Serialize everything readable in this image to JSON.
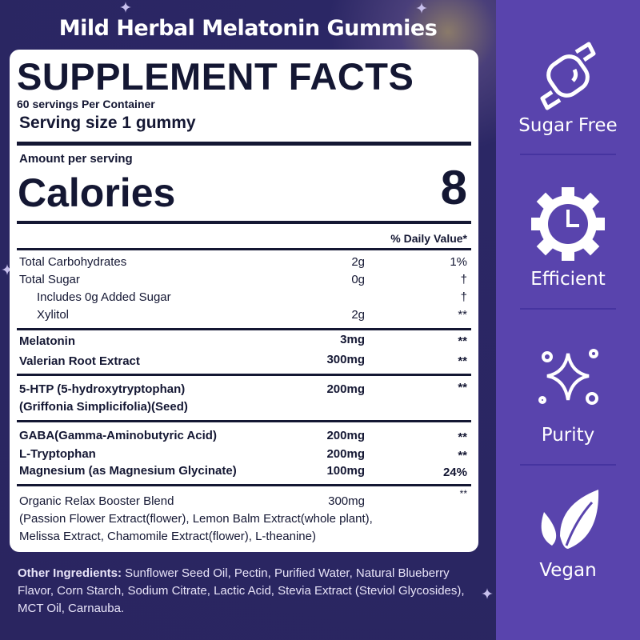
{
  "title": "Mild Herbal Melatonin Gummies",
  "label": {
    "heading": "SUPPLEMENT FACTS",
    "servings": "60 servings Per Container",
    "serving_size": "Serving size  1 gummy",
    "amount_per_serving": "Amount per serving",
    "calories_label": "Calories",
    "calories_value": "8",
    "dv_header": "% Daily Value*",
    "rows": [
      {
        "name": "Total Carbohydrates",
        "amount": "2g",
        "dv": "1%"
      },
      {
        "name": "Total Sugar",
        "amount": "0g",
        "dv": "†"
      },
      {
        "name": "Includes 0g Added Sugar",
        "amount": "",
        "dv": "†"
      },
      {
        "name": "Xylitol",
        "amount": "2g",
        "dv": "**"
      },
      {
        "name": "Melatonin",
        "amount": "3mg",
        "dv": "**"
      },
      {
        "name": "Valerian Root Extract",
        "amount": "300mg",
        "dv": "**"
      },
      {
        "name": "5-HTP (5-hydroxytryptophan)",
        "amount": "200mg",
        "dv": "**"
      },
      {
        "name": "(Griffonia Simplicifolia)(Seed)",
        "amount": "",
        "dv": ""
      },
      {
        "name": "GABA(Gamma-Aminobutyric Acid)",
        "amount": "200mg",
        "dv": "**"
      },
      {
        "name": "L-Tryptophan",
        "amount": "200mg",
        "dv": "**"
      },
      {
        "name": "Magnesium (as Magnesium Glycinate)",
        "amount": "100mg",
        "dv": "24%"
      },
      {
        "name": "Organic Relax Booster Blend",
        "amount": "300mg",
        "dv": "**"
      }
    ],
    "blend_line1": "(Passion Flower Extract(flower), Lemon Balm Extract(whole plant),",
    "blend_line2": "Melissa Extract, Chamomile Extract(flower), L-theanine)"
  },
  "other_ingredients": {
    "label": "Other Ingredients:",
    "text": " Sunflower Seed Oil, Pectin, Purified Water, Natural Blueberry Flavor, Corn Starch, Sodium Citrate, Lactic Acid, Stevia Extract (Steviol Glycosides), MCT Oil, Carnauba."
  },
  "badges": [
    {
      "label": "Sugar Free",
      "icon": "candy-icon"
    },
    {
      "label": "Efficient",
      "icon": "gear-clock-icon"
    },
    {
      "label": "Purity",
      "icon": "sparkle-icon"
    },
    {
      "label": "Vegan",
      "icon": "leaf-icon"
    }
  ],
  "colors": {
    "side_panel": "#5944ad",
    "background": "#2a2560",
    "label_text": "#141733"
  }
}
